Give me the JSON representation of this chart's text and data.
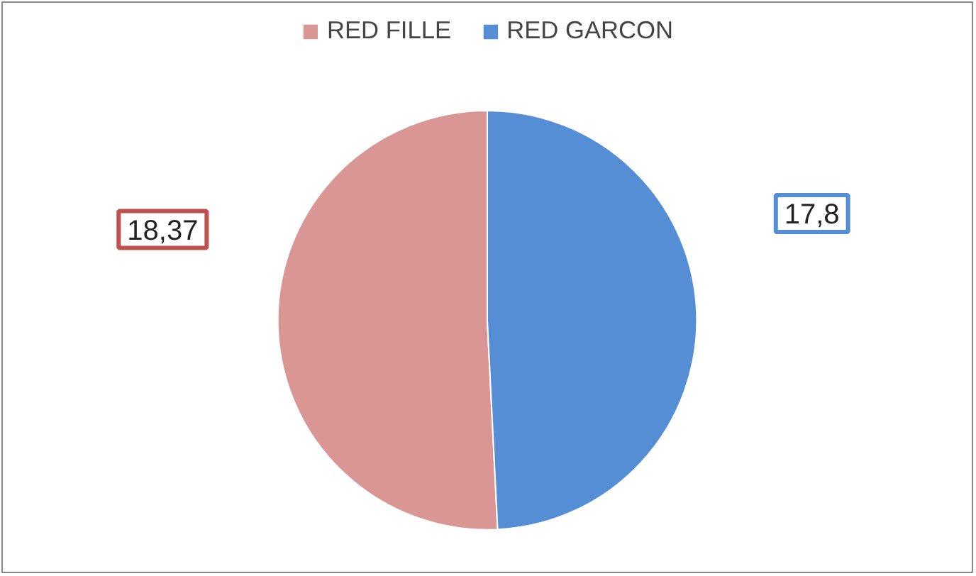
{
  "chart_data": {
    "type": "pie",
    "categories": [
      "RED FILLE",
      "RED GARCON"
    ],
    "values": [
      18.37,
      17.8
    ],
    "colors": [
      "#d99694",
      "#558ed5"
    ],
    "value_labels": [
      "18,37",
      "17,8"
    ],
    "legend": "top"
  }
}
